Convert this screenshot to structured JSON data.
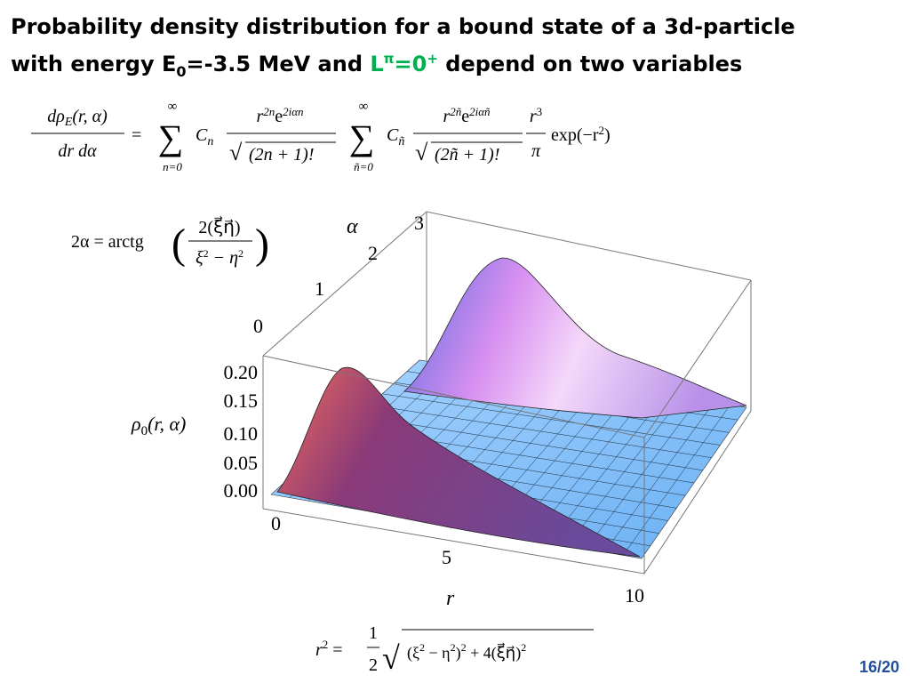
{
  "title": {
    "line1": "Probability density distribution for a bound state of a 3d-particle",
    "line2_a": "with energy E",
    "line2_sub": "0",
    "line2_b": "=-3.5 MeV and ",
    "line2_L": "L",
    "line2_pi": "π",
    "line2_eq": "=0",
    "line2_plus": "+",
    "line2_c": " depend on two variables"
  },
  "formula_density": {
    "lhs_num": "dρ",
    "lhs_num_sub": "E",
    "lhs_num_rest": "(r, α)",
    "lhs_den": "dr dα",
    "eq": "=",
    "sum1": "∑",
    "sum1_top": "∞",
    "sum1_bottom": "n=0",
    "c1": "C",
    "c1_sub": "n",
    "f1_r": "r",
    "f1_r_sup": "2n",
    "f1_e": "e",
    "f1_e_sup": "2iαn",
    "f1_root": "√",
    "f1_den": "(2n + 1)!",
    "sum2": "∑",
    "sum2_top": "∞",
    "sum2_bottom": "ñ=0",
    "c2": "C",
    "c2_sub": "ñ",
    "f2_r": "r",
    "f2_r_sup": "2ñ",
    "f2_e": "e",
    "f2_e_sup": "2iαñ",
    "f2_root": "√",
    "f2_den": "(2ñ + 1)!",
    "f3_num": "r",
    "f3_num_sup": "3",
    "f3_den": "π",
    "exp": "exp(−r",
    "exp_sup": "2",
    "exp_close": ")"
  },
  "formula_alpha": {
    "lhs": "2α = arctg",
    "open": "(",
    "num": "2(ξ⃗η⃗)",
    "den_a": "ξ",
    "den_a_sup": "2",
    "den_b": " − η",
    "den_b_sup": "2",
    "close": ")"
  },
  "formula_r": {
    "lhs": "r",
    "lhs_sup": "2",
    "eq": " =",
    "half_num": "1",
    "half_den": "2",
    "root": "√",
    "radicand": [
      "(ξ",
      "2",
      " − η",
      "2",
      ")",
      "2",
      " + 4(ξ⃗η⃗)",
      "2"
    ]
  },
  "plot": {
    "alpha_label": "α",
    "alpha_ticks": [
      "3",
      "2",
      "1",
      "0"
    ],
    "rho_label": "ρ",
    "rho_label_sub": "0",
    "rho_label_rest": "(r, α)",
    "rho_ticks": [
      "0.20",
      "0.15",
      "0.10",
      "0.05",
      "0.00"
    ],
    "r_label": "r",
    "r_ticks": [
      "0",
      "5",
      "10"
    ]
  },
  "page_number": "16/20"
}
